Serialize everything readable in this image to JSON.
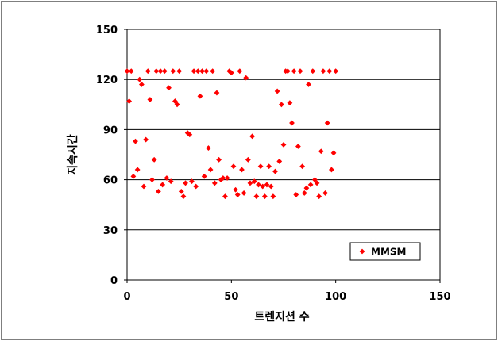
{
  "chart_data": {
    "type": "scatter",
    "title": "",
    "xlabel": "트렌지션 수",
    "ylabel": "지속시간",
    "xlim": [
      0,
      150
    ],
    "ylim": [
      0,
      150
    ],
    "xticks": [
      "0",
      "50",
      "100",
      "150"
    ],
    "yticks": [
      "0",
      "30",
      "60",
      "90",
      "120",
      "150"
    ],
    "grid": "horizontal",
    "legend_position": "bottom-right",
    "marker_color": "#ff0000",
    "series": [
      {
        "name": "MMSM",
        "points": [
          [
            0,
            125
          ],
          [
            1,
            107
          ],
          [
            2,
            125
          ],
          [
            3,
            62
          ],
          [
            4,
            83
          ],
          [
            5,
            66
          ],
          [
            6,
            120
          ],
          [
            7,
            117
          ],
          [
            8,
            56
          ],
          [
            9,
            84
          ],
          [
            10,
            125
          ],
          [
            11,
            108
          ],
          [
            12,
            60
          ],
          [
            13,
            72
          ],
          [
            14,
            125
          ],
          [
            15,
            53
          ],
          [
            16,
            125
          ],
          [
            17,
            57
          ],
          [
            18,
            125
          ],
          [
            19,
            61
          ],
          [
            20,
            115
          ],
          [
            21,
            59
          ],
          [
            22,
            125
          ],
          [
            23,
            107
          ],
          [
            24,
            105
          ],
          [
            25,
            125
          ],
          [
            26,
            53
          ],
          [
            27,
            50
          ],
          [
            28,
            58
          ],
          [
            29,
            88
          ],
          [
            30,
            87
          ],
          [
            31,
            59
          ],
          [
            32,
            125
          ],
          [
            33,
            56
          ],
          [
            34,
            125
          ],
          [
            35,
            110
          ],
          [
            36,
            125
          ],
          [
            37,
            62
          ],
          [
            38,
            125
          ],
          [
            39,
            79
          ],
          [
            40,
            66
          ],
          [
            41,
            125
          ],
          [
            42,
            58
          ],
          [
            43,
            112
          ],
          [
            44,
            72
          ],
          [
            45,
            60
          ],
          [
            46,
            61
          ],
          [
            47,
            50
          ],
          [
            48,
            61
          ],
          [
            49,
            125
          ],
          [
            50,
            124
          ],
          [
            51,
            68
          ],
          [
            52,
            54
          ],
          [
            53,
            51
          ],
          [
            54,
            125
          ],
          [
            55,
            66
          ],
          [
            56,
            52
          ],
          [
            57,
            121
          ],
          [
            58,
            72
          ],
          [
            59,
            58
          ],
          [
            60,
            86
          ],
          [
            61,
            59
          ],
          [
            62,
            50
          ],
          [
            63,
            57
          ],
          [
            64,
            68
          ],
          [
            65,
            56
          ],
          [
            66,
            50
          ],
          [
            67,
            57
          ],
          [
            68,
            68
          ],
          [
            69,
            56
          ],
          [
            70,
            50
          ],
          [
            71,
            65
          ],
          [
            72,
            113
          ],
          [
            73,
            71
          ],
          [
            74,
            105
          ],
          [
            75,
            81
          ],
          [
            76,
            125
          ],
          [
            77,
            125
          ],
          [
            78,
            106
          ],
          [
            79,
            94
          ],
          [
            80,
            125
          ],
          [
            81,
            51
          ],
          [
            82,
            80
          ],
          [
            83,
            125
          ],
          [
            84,
            68
          ],
          [
            85,
            52
          ],
          [
            86,
            55
          ],
          [
            87,
            117
          ],
          [
            88,
            57
          ],
          [
            89,
            125
          ],
          [
            90,
            60
          ],
          [
            91,
            58
          ],
          [
            92,
            50
          ],
          [
            93,
            77
          ],
          [
            94,
            125
          ],
          [
            95,
            52
          ],
          [
            96,
            94
          ],
          [
            97,
            125
          ],
          [
            98,
            66
          ],
          [
            99,
            76
          ],
          [
            100,
            125
          ]
        ]
      }
    ]
  }
}
